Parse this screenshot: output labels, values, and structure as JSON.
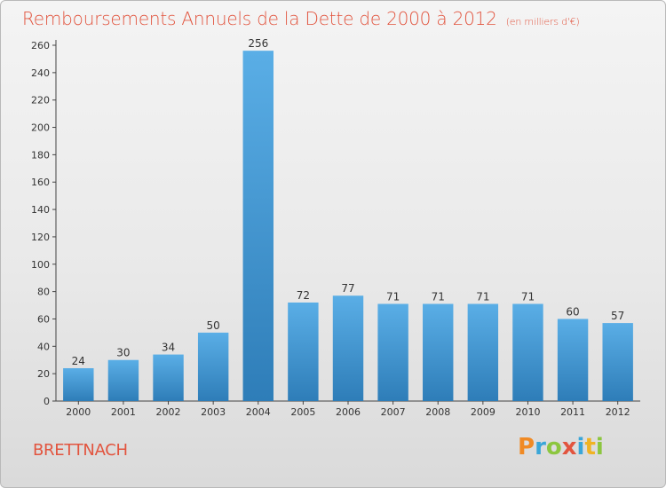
{
  "chart_data": {
    "type": "bar",
    "title": "Remboursements Annuels de la Dette de 2000 à 2012",
    "subtitle": "(en milliers d'€)",
    "categories": [
      "2000",
      "2001",
      "2002",
      "2003",
      "2004",
      "2005",
      "2006",
      "2007",
      "2008",
      "2009",
      "2010",
      "2011",
      "2012"
    ],
    "values": [
      24,
      30,
      34,
      50,
      256,
      72,
      77,
      71,
      71,
      71,
      71,
      60,
      57
    ],
    "ylim": [
      0,
      260
    ],
    "yticks": [
      0,
      20,
      40,
      60,
      80,
      100,
      120,
      140,
      160,
      180,
      200,
      220,
      240,
      260
    ],
    "grid": false,
    "bar_color_top": "#5aaee6",
    "bar_color_bottom": "#2e7db8"
  },
  "place": "BRETTNACH",
  "logo": {
    "text": "Proxiti",
    "letters": [
      "P",
      "r",
      "o",
      "x",
      "i",
      "t",
      "i"
    ],
    "colors": [
      "#f08a24",
      "#3aa6d8",
      "#8cc63f",
      "#e2543e",
      "#3aa6d8",
      "#f0b323",
      "#8cc63f"
    ]
  },
  "colors": {
    "title": "#e2543e",
    "axis": "#333333"
  }
}
